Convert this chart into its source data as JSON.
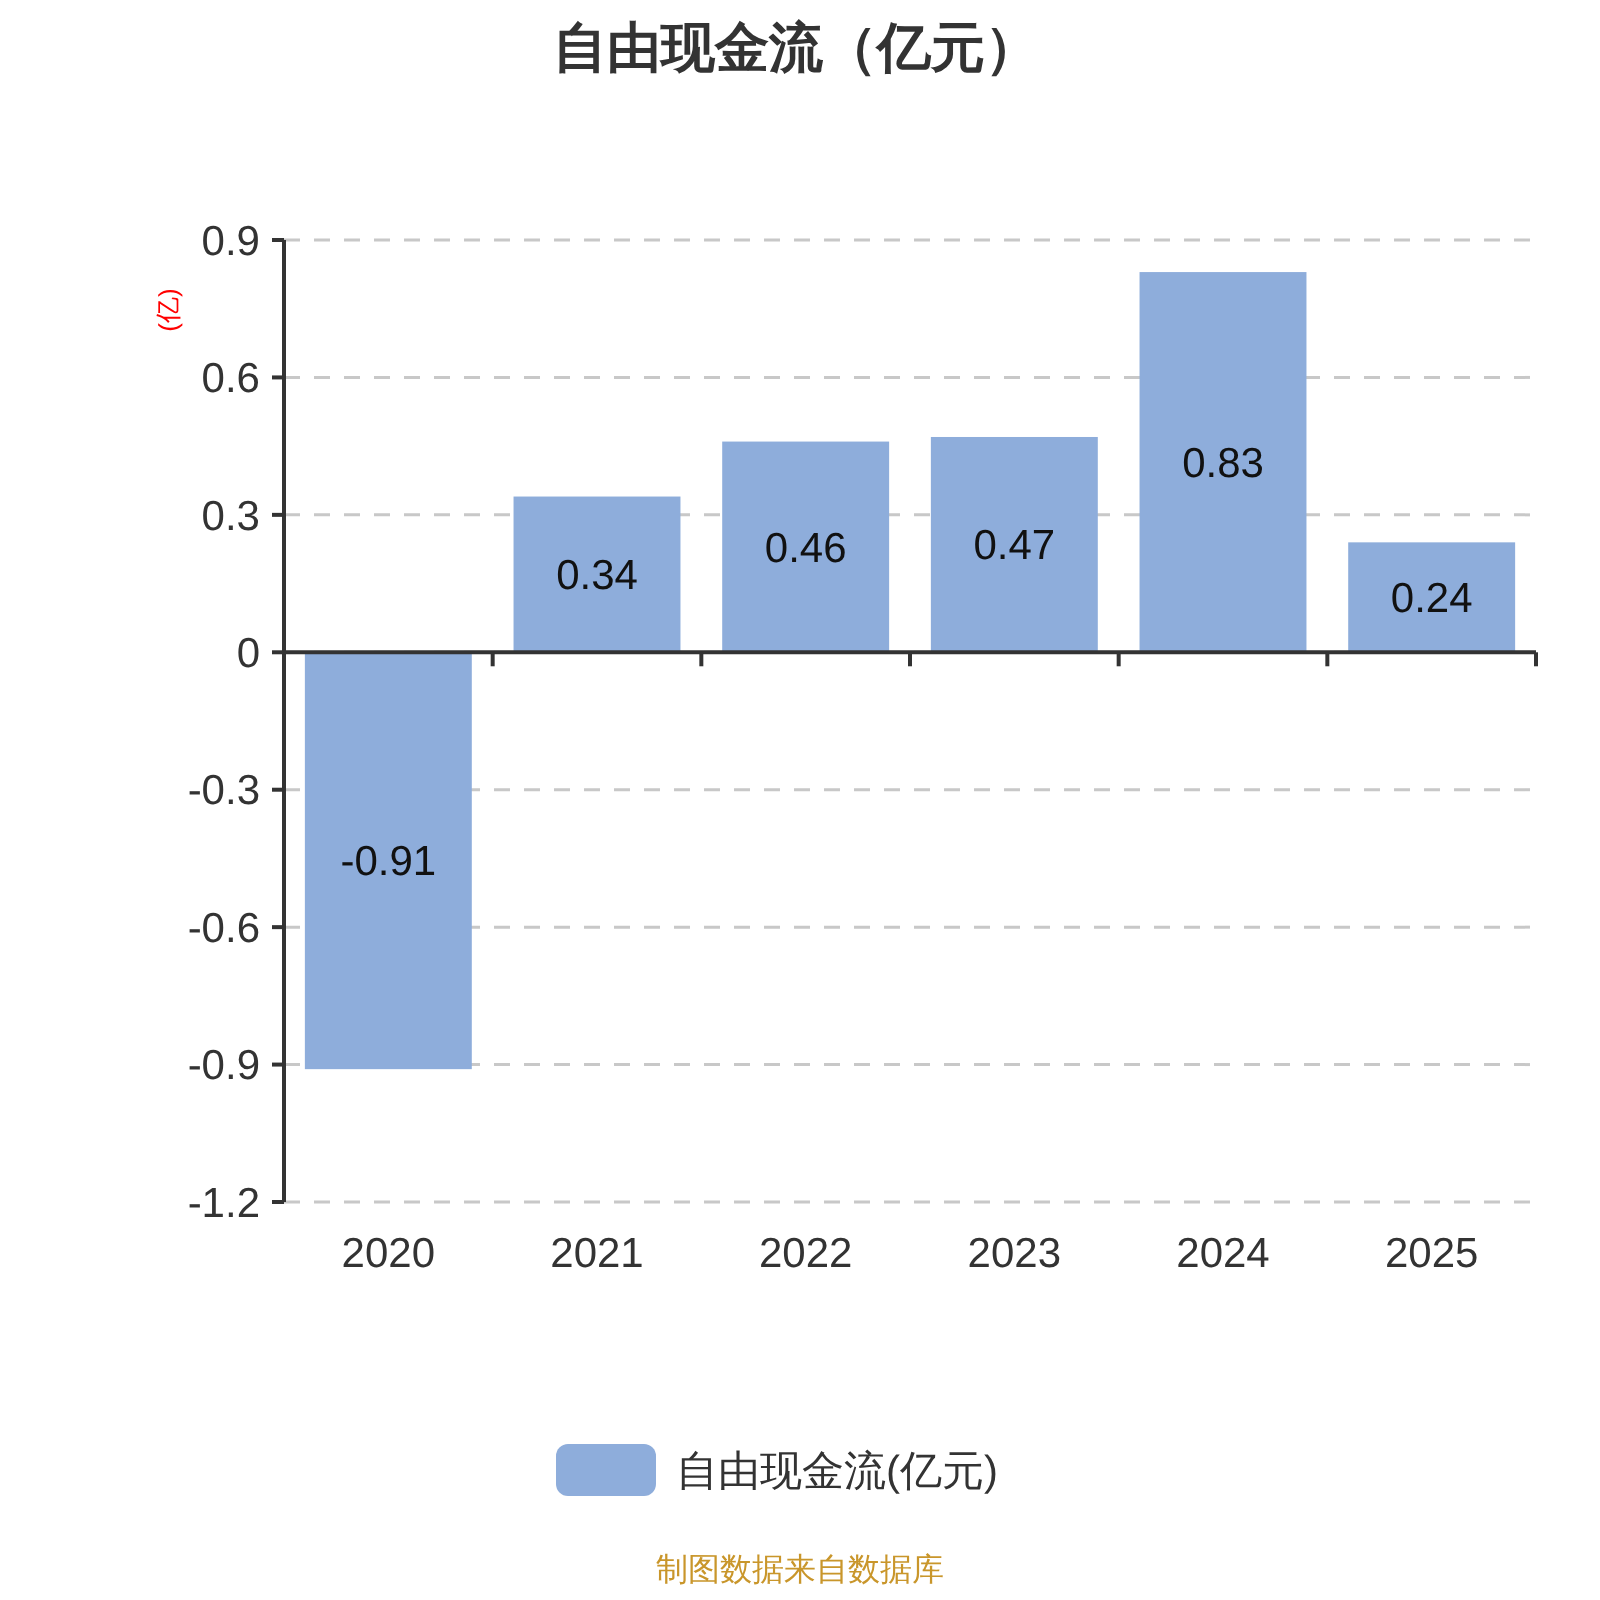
{
  "chart_data": {
    "type": "bar",
    "title": "自由现金流（亿元）",
    "ylabel": "(亿)",
    "categories": [
      "2020",
      "2021",
      "2022",
      "2023",
      "2024",
      "2025"
    ],
    "series": [
      {
        "name": "自由现金流(亿元)",
        "color": "#8eaddb",
        "values": [
          -0.91,
          0.34,
          0.46,
          0.47,
          0.83,
          0.24
        ]
      }
    ],
    "ylim": [
      -1.2,
      0.9
    ],
    "yticks": [
      -1.2,
      -0.9,
      -0.6,
      -0.3,
      0,
      0.3,
      0.6,
      0.9
    ],
    "grid": "y",
    "legend": "bottom",
    "data_labels": true,
    "annotations": [
      "制图数据来自数据库"
    ]
  }
}
